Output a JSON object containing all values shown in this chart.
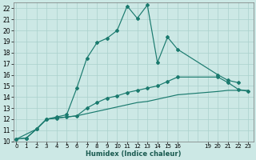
{
  "xlabel": "Humidex (Indice chaleur)",
  "bg_color": "#cce8e5",
  "grid_color": "#aad0cc",
  "line_color": "#1a7a6e",
  "xtick_labels": [
    "0",
    "1",
    "2",
    "3",
    "4",
    "5",
    "6",
    "7",
    "8",
    "9",
    "10",
    "11",
    "12",
    "13",
    "14",
    "15",
    "16",
    "19",
    "20",
    "21",
    "22",
    "23"
  ],
  "xtick_positions": [
    0,
    1,
    2,
    3,
    4,
    5,
    6,
    7,
    8,
    9,
    10,
    11,
    12,
    13,
    14,
    15,
    16,
    19,
    20,
    21,
    22,
    23
  ],
  "ytick_vals": [
    10,
    11,
    12,
    13,
    14,
    15,
    16,
    17,
    18,
    19,
    20,
    21,
    22
  ],
  "line1_x": [
    0,
    1,
    2,
    3,
    4,
    5,
    6,
    7,
    8,
    9,
    10,
    11,
    12,
    13,
    14,
    15,
    16,
    20,
    21,
    22
  ],
  "line1_y": [
    10.2,
    10.3,
    11.1,
    12.0,
    12.2,
    12.4,
    14.8,
    17.5,
    18.9,
    19.3,
    20.0,
    22.2,
    21.1,
    22.3,
    17.1,
    19.4,
    18.3,
    16.0,
    15.5,
    15.3
  ],
  "line2_x": [
    0,
    1,
    2,
    3,
    4,
    5,
    6,
    7,
    8,
    9,
    10,
    11,
    12,
    13,
    14,
    15,
    16,
    20,
    21,
    22,
    23
  ],
  "line2_y": [
    10.2,
    10.3,
    11.1,
    12.0,
    12.1,
    12.2,
    12.3,
    13.0,
    13.5,
    13.9,
    14.1,
    14.4,
    14.6,
    14.8,
    15.0,
    15.4,
    15.8,
    15.8,
    15.3,
    14.7,
    14.5
  ],
  "line3_x": [
    0,
    2,
    3,
    4,
    5,
    6,
    7,
    8,
    9,
    10,
    11,
    12,
    13,
    14,
    15,
    16,
    20,
    21,
    22,
    23
  ],
  "line3_y": [
    10.2,
    11.1,
    12.0,
    12.1,
    12.2,
    12.3,
    12.5,
    12.7,
    12.9,
    13.1,
    13.3,
    13.5,
    13.6,
    13.8,
    14.0,
    14.2,
    14.5,
    14.6,
    14.6,
    14.6
  ]
}
